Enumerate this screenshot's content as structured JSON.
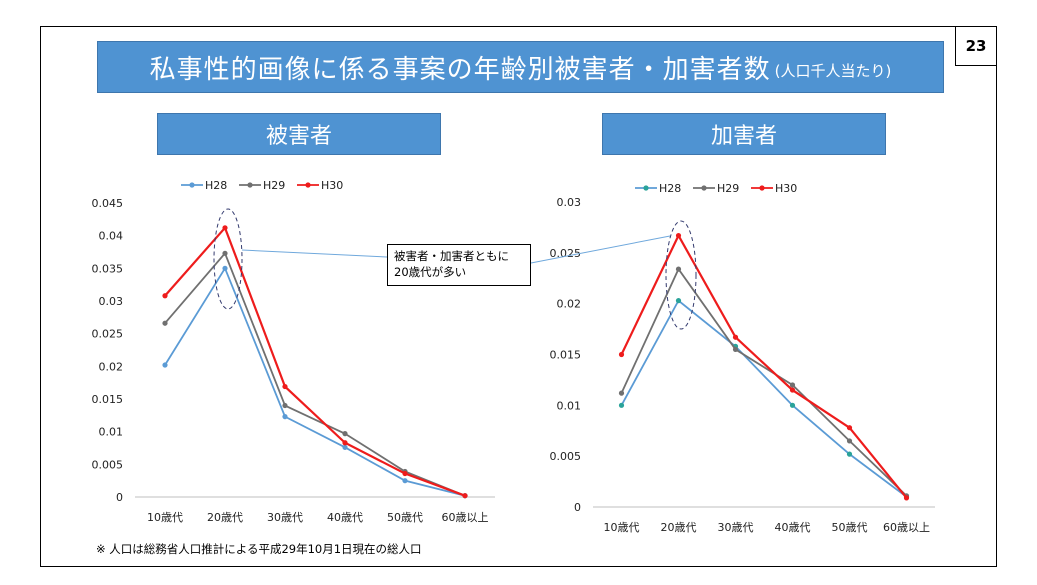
{
  "page_number": "23",
  "title": "私事性的画像に係る事案の年齢別被害者・加害者数",
  "title_sub": "(人口千人当たり)",
  "note": "※ 人口は総務省人口推計による平成29年10月1日現在の総人口",
  "callout": {
    "line1": "被害者・加害者ともに",
    "line2": "20歳代が多い"
  },
  "colors": {
    "banner": "#4f93d2",
    "H28": "#5b9bd5",
    "H29": "#707070",
    "H30": "#ee1c1c",
    "H28_right_marker": "#2aa39a"
  },
  "chart_data": [
    {
      "type": "line",
      "title": "被害者",
      "categories": [
        "10歳代",
        "20歳代",
        "30歳代",
        "40歳代",
        "50歳代",
        "60歳以上"
      ],
      "ylim": [
        0,
        0.045
      ],
      "yticks": [
        "0",
        "0.005",
        "0.01",
        "0.015",
        "0.02",
        "0.025",
        "0.03",
        "0.035",
        "0.04",
        "0.045"
      ],
      "legend": "top",
      "series": [
        {
          "name": "H28",
          "values": [
            0.0202,
            0.035,
            0.0123,
            0.0076,
            0.0025,
            0.0002
          ]
        },
        {
          "name": "H29",
          "values": [
            0.0266,
            0.0373,
            0.014,
            0.0097,
            0.0039,
            0.0002
          ]
        },
        {
          "name": "H30",
          "values": [
            0.0308,
            0.0412,
            0.0169,
            0.0083,
            0.0036,
            0.0002
          ]
        }
      ]
    },
    {
      "type": "line",
      "title": "加害者",
      "categories": [
        "10歳代",
        "20歳代",
        "30歳代",
        "40歳代",
        "50歳代",
        "60歳以上"
      ],
      "ylim": [
        0,
        0.03
      ],
      "yticks": [
        "0",
        "0.005",
        "0.01",
        "0.015",
        "0.02",
        "0.025",
        "0.03"
      ],
      "legend": "top",
      "series": [
        {
          "name": "H28",
          "values": [
            0.01,
            0.0203,
            0.0158,
            0.01,
            0.0052,
            0.001
          ]
        },
        {
          "name": "H29",
          "values": [
            0.0112,
            0.0234,
            0.0155,
            0.012,
            0.0065,
            0.0011
          ]
        },
        {
          "name": "H30",
          "values": [
            0.015,
            0.0267,
            0.0167,
            0.0115,
            0.0078,
            0.0009
          ]
        }
      ]
    }
  ]
}
